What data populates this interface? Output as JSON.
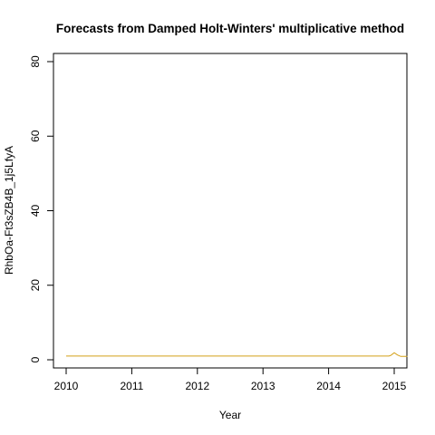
{
  "chart_data": {
    "type": "line",
    "title": "Forecasts from Damped Holt-Winters' multiplicative method",
    "xlabel": "Year",
    "ylabel": "RhbOa-Ft3sZB4B_1j5LfyA",
    "xlim": [
      2010,
      2015.2
    ],
    "ylim": [
      0,
      80
    ],
    "x_ticks": [
      "2010",
      "2011",
      "2012",
      "2013",
      "2014",
      "2015"
    ],
    "y_ticks": [
      "0",
      "20",
      "40",
      "60",
      "80"
    ],
    "grid": false,
    "series": [
      {
        "color": "#d4a017",
        "x": [
          2010.0,
          2014.92,
          2014.95,
          2015.0,
          2015.05,
          2015.1,
          2015.2
        ],
        "values": [
          1.0,
          1.0,
          1.2,
          1.9,
          1.3,
          0.9,
          0.9
        ]
      }
    ]
  }
}
